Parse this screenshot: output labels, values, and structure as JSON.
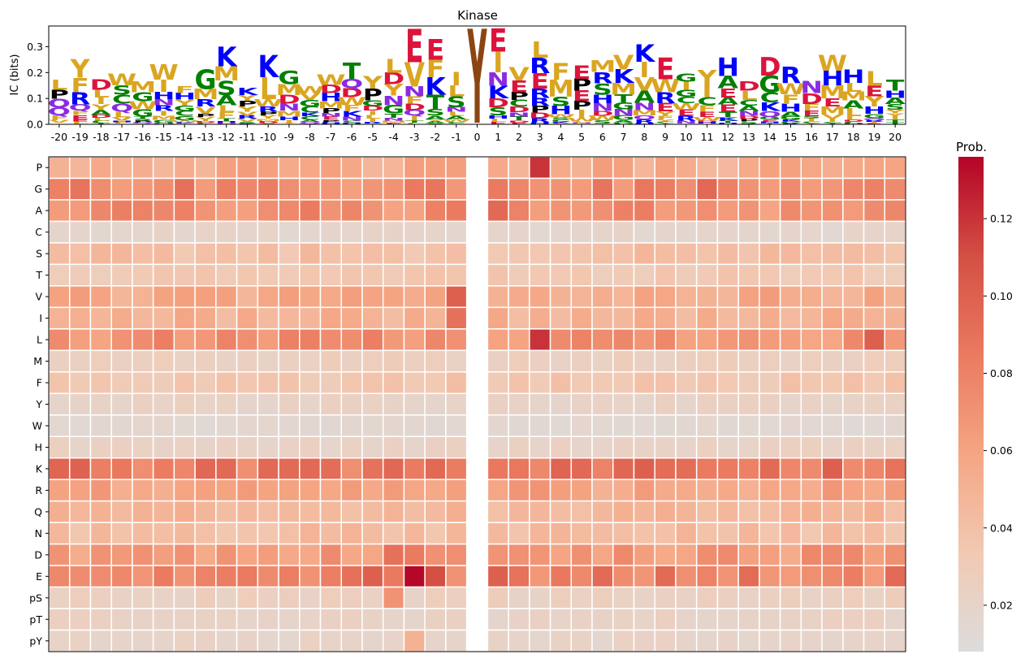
{
  "chart_data": [
    {
      "type": "sequence-logo",
      "title": "Kinase",
      "ylabel": "IC (bits)",
      "ylim": [
        0,
        0.38
      ],
      "yticks": [
        "0.0",
        "0.1",
        "0.2",
        "0.3"
      ],
      "ytick_values": [
        0,
        0.1,
        0.2,
        0.3
      ],
      "positions": [
        -20,
        -19,
        -18,
        -17,
        -16,
        -15,
        -14,
        -13,
        -12,
        -11,
        -10,
        -9,
        -8,
        -7,
        -6,
        -5,
        -4,
        -3,
        -2,
        -1,
        0,
        1,
        2,
        3,
        4,
        5,
        6,
        7,
        8,
        9,
        10,
        11,
        12,
        13,
        14,
        15,
        16,
        17,
        18,
        19,
        20
      ],
      "color_groups": {
        "acidic": {
          "residues": [
            "D",
            "E"
          ],
          "color": "#dc143c"
        },
        "basic": {
          "residues": [
            "K",
            "R",
            "H"
          ],
          "color": "#0000ff"
        },
        "small": {
          "residues": [
            "A",
            "G",
            "S",
            "T",
            "C"
          ],
          "color": "#008000"
        },
        "hydrophobic": {
          "residues": [
            "V",
            "I",
            "L",
            "M",
            "F",
            "W",
            "Y"
          ],
          "color": "#daa520"
        },
        "proline": {
          "residues": [
            "P"
          ],
          "color": "#000000"
        },
        "polar": {
          "residues": [
            "N",
            "Q"
          ],
          "color": "#8a2be2"
        },
        "phospho": {
          "residues": [
            "pS",
            "pT",
            "pY"
          ],
          "color": "#8b4513"
        }
      },
      "center_letter": "Y",
      "center_letter_height": 0.37,
      "top_letters": [
        {
          "pos": -3,
          "letter": "E",
          "height": 0.37
        },
        {
          "pos": -2,
          "letter": "E",
          "height": 0.33
        },
        {
          "pos": 1,
          "letter": "E",
          "height": 0.37
        },
        {
          "pos": 3,
          "letter": "L",
          "height": 0.32
        },
        {
          "pos": 8,
          "letter": "K",
          "height": 0.31
        },
        {
          "pos": -12,
          "letter": "K",
          "height": 0.3
        }
      ]
    },
    {
      "type": "heatmap",
      "rows": [
        "P",
        "G",
        "A",
        "C",
        "S",
        "T",
        "V",
        "I",
        "L",
        "M",
        "F",
        "Y",
        "W",
        "H",
        "K",
        "R",
        "Q",
        "N",
        "D",
        "E",
        "pS",
        "pT",
        "pY"
      ],
      "columns": [
        -20,
        -19,
        -18,
        -17,
        -16,
        -15,
        -14,
        -13,
        -12,
        -11,
        -10,
        -9,
        -8,
        -7,
        -6,
        -5,
        -4,
        -3,
        -2,
        -1,
        0,
        1,
        2,
        3,
        4,
        5,
        6,
        7,
        8,
        9,
        10,
        11,
        12,
        13,
        14,
        15,
        16,
        17,
        18,
        19,
        20
      ],
      "row_means": [
        0.055,
        0.075,
        0.072,
        0.018,
        0.04,
        0.033,
        0.055,
        0.05,
        0.07,
        0.025,
        0.035,
        0.022,
        0.015,
        0.022,
        0.085,
        0.06,
        0.045,
        0.042,
        0.065,
        0.08,
        0.025,
        0.022,
        0.02
      ],
      "highlights": [
        {
          "row": "E",
          "column": -3,
          "value": 0.135
        },
        {
          "row": "P",
          "column": 3,
          "value": 0.12
        },
        {
          "row": "L",
          "column": 3,
          "value": 0.12
        },
        {
          "row": "E",
          "column": -2,
          "value": 0.11
        },
        {
          "row": "E",
          "column": -5,
          "value": 0.1
        },
        {
          "row": "E",
          "column": 1,
          "value": 0.1
        },
        {
          "row": "V",
          "column": -1,
          "value": 0.1
        },
        {
          "row": "I",
          "column": -1,
          "value": 0.09
        },
        {
          "row": "L",
          "column": 19,
          "value": 0.1
        },
        {
          "row": "K",
          "column": 8,
          "value": 0.1
        },
        {
          "row": "K",
          "column": -10,
          "value": 0.095
        },
        {
          "row": "K",
          "column": -8,
          "value": 0.095
        },
        {
          "row": "K",
          "column": -12,
          "value": 0.095
        },
        {
          "row": "G",
          "column": 11,
          "value": 0.095
        },
        {
          "row": "G",
          "column": -14,
          "value": 0.09
        },
        {
          "row": "A",
          "column": 1,
          "value": 0.095
        },
        {
          "row": "D",
          "column": -4,
          "value": 0.09
        },
        {
          "row": "D",
          "column": -3,
          "value": 0.085
        },
        {
          "row": "pS",
          "column": -4,
          "value": 0.07
        },
        {
          "row": "pY",
          "column": -3,
          "value": 0.05
        }
      ],
      "empty_column": 0,
      "colorbar": {
        "label": "Prob.",
        "range": [
          0.008,
          0.136
        ],
        "ticks": [
          "0.02",
          "0.04",
          "0.06",
          "0.08",
          "0.10",
          "0.12"
        ],
        "tick_values": [
          0.02,
          0.04,
          0.06,
          0.08,
          0.1,
          0.12
        ],
        "colormap": "coolwarm-upper",
        "colors": [
          "#dcdcdc",
          "#f2c9b3",
          "#f5a583",
          "#ea7a60",
          "#d44f44",
          "#b40426"
        ]
      }
    }
  ]
}
